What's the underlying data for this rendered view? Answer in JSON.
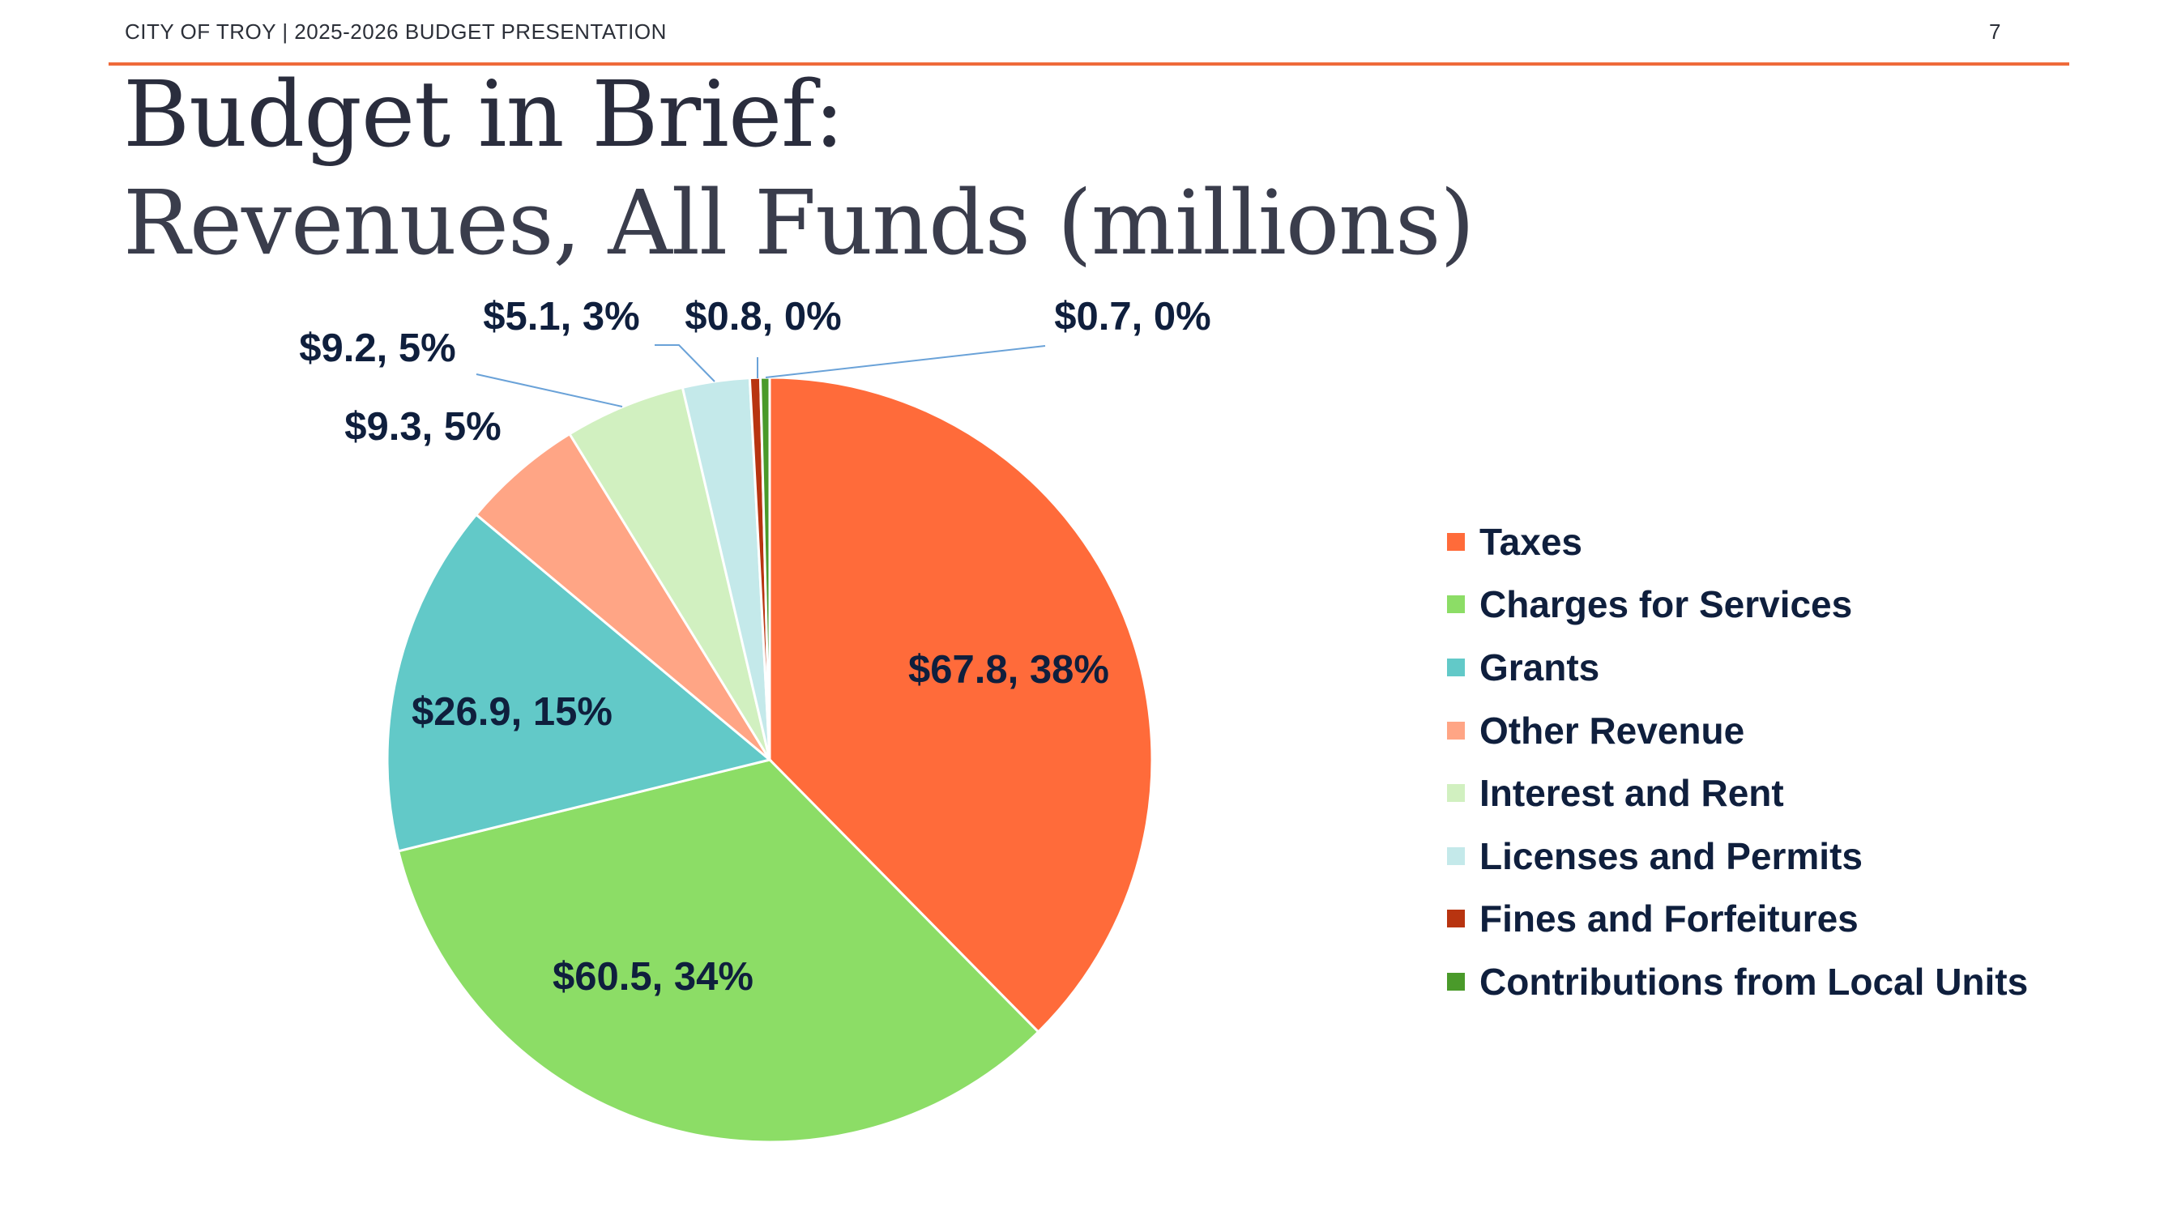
{
  "header": {
    "text": "CITY OF TROY | 2025-2026 BUDGET PRESENTATION",
    "page_number": "7"
  },
  "title": {
    "line1": "Budget in Brief:",
    "line2": "Revenues, All Funds (millions)"
  },
  "chart_data": {
    "type": "pie",
    "title": "",
    "categories": [
      "Taxes",
      "Charges for Services",
      "Grants",
      "Other Revenue",
      "Interest and Rent",
      "Licenses and Permits",
      "Fines and Forfeitures",
      "Contributions from Local Units"
    ],
    "values": [
      67.8,
      60.5,
      26.9,
      9.3,
      9.2,
      5.1,
      0.8,
      0.7
    ],
    "percent_labels": [
      "38%",
      "34%",
      "15%",
      "5%",
      "5%",
      "3%",
      "0%",
      "0%"
    ],
    "data_labels": [
      "$67.8, 38%",
      "$60.5, 34%",
      "$26.9, 15%",
      "$9.3, 5%",
      "$9.2, 5%",
      "$5.1, 3%",
      "$0.8, 0%",
      "$0.7, 0%"
    ],
    "colors": [
      "#ff6b3a",
      "#8cdd66",
      "#62c9c8",
      "#ffa585",
      "#d1f0c0",
      "#c4e9ea",
      "#b83410",
      "#4a9a2a"
    ],
    "start": "12 o'clock",
    "direction": "clockwise",
    "legend_position": "right",
    "label_color": "#0f1f3d",
    "leader_line_color": "#6aa2d8"
  }
}
